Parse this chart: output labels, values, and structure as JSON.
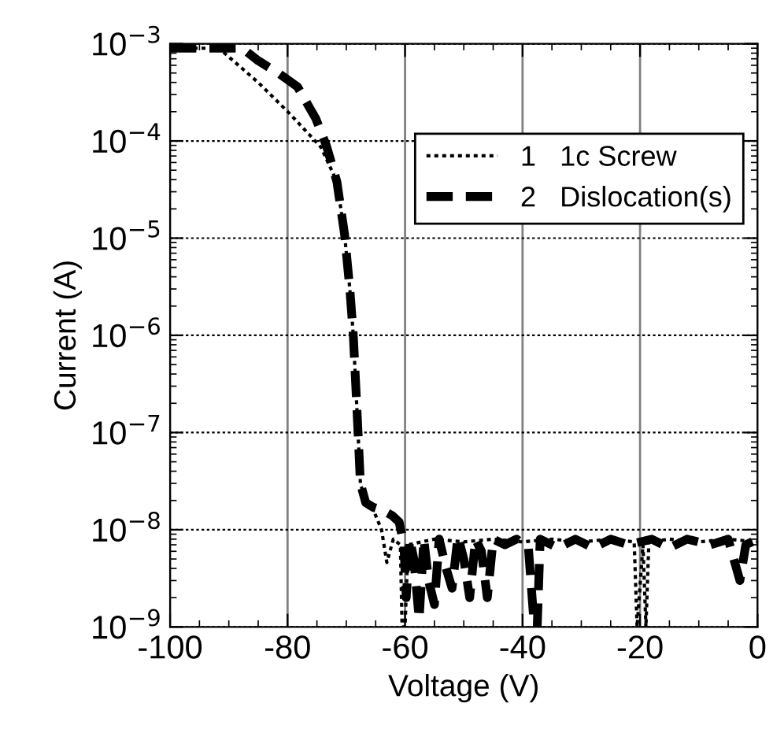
{
  "chart_data": {
    "type": "line",
    "xlabel": "Voltage (V)",
    "ylabel": "Current (A)",
    "log": "y",
    "xlim": [
      -100,
      0
    ],
    "xticks": [
      -100,
      -80,
      -60,
      -40,
      -20,
      0
    ],
    "ylim": [
      1e-09,
      0.001
    ],
    "yticks": [
      {
        "value": 0.001,
        "label": "10$^{−3}$"
      },
      {
        "value": 0.0001,
        "label": "10$^{−4}$"
      },
      {
        "value": 1e-05,
        "label": "10$^{−5}$"
      },
      {
        "value": 1e-06,
        "label": "10$^{−6}$"
      },
      {
        "value": 1e-07,
        "label": "10$^{−7}$"
      },
      {
        "value": 1e-08,
        "label": "10$^{−8}$"
      },
      {
        "value": 1e-09,
        "label": "10$^{−9}$"
      }
    ],
    "grid": true,
    "legend": "top right",
    "marker": "none",
    "series": [
      {
        "name": "1   1c Screw",
        "color": "#000000",
        "line_style": "dotted",
        "x": [
          -100,
          -91.7,
          -85,
          -79.6,
          -74.3,
          -71.6,
          -70.3,
          -69.4,
          -68.8,
          -68,
          -67.6,
          -66.7,
          -65.4,
          -64,
          -63.1,
          -62,
          -60.8,
          -60.5,
          -60,
          -59.5,
          -55,
          -50,
          -45,
          -40,
          -35,
          -30,
          -25,
          -21,
          -20.5,
          -19.5,
          -19,
          -18.5,
          -15,
          -10,
          -5,
          0
        ],
        "values": [
          0.0009,
          0.0009,
          0.0004,
          0.00019,
          8.6e-05,
          3.8e-05,
          1.1e-05,
          3e-06,
          9.8e-07,
          1e-07,
          3e-08,
          1.9e-08,
          1.6e-08,
          1e-08,
          4.6e-09,
          8e-09,
          7e-09,
          1e-09,
          1e-09,
          7e-09,
          8e-09,
          7.5e-09,
          8e-09,
          7.5e-09,
          8e-09,
          7.5e-09,
          8e-09,
          7.5e-09,
          1e-09,
          7e-09,
          1e-09,
          7.5e-09,
          8e-09,
          7.5e-09,
          8e-09,
          7.5e-09
        ]
      },
      {
        "name": "2   Dislocation(s)",
        "color": "#000000",
        "line_style": "dashed",
        "x": [
          -100,
          -87.7,
          -85,
          -81.4,
          -78.3,
          -75.2,
          -73.4,
          -71.6,
          -70.3,
          -69.4,
          -68.8,
          -68,
          -67.6,
          -66.7,
          -65.4,
          -64,
          -62.2,
          -61,
          -60.2,
          -59.8,
          -59.2,
          -58.5,
          -57.6,
          -56.8,
          -56,
          -55,
          -54.2,
          -53,
          -52,
          -51,
          -50,
          -49,
          -48,
          -47,
          -46,
          -45,
          -43,
          -41,
          -39,
          -38,
          -37.5,
          -37,
          -34,
          -31,
          -28,
          -25,
          -22,
          -18,
          -15,
          -12,
          -8,
          -5,
          -3,
          -2,
          0
        ],
        "values": [
          0.0009,
          0.0009,
          0.00067,
          0.00049,
          0.00036,
          0.00017,
          9e-05,
          3.8e-05,
          1.1e-05,
          3e-06,
          9.8e-07,
          1e-07,
          3e-08,
          1.9e-08,
          1.7e-08,
          1.6e-08,
          1.4e-08,
          1.2e-08,
          7e-09,
          2e-09,
          8e-09,
          5e-09,
          1.2e-09,
          8e-09,
          3e-09,
          1.7e-09,
          8e-09,
          4e-09,
          2.5e-09,
          8.5e-09,
          5e-09,
          2e-09,
          8e-09,
          6e-09,
          2e-09,
          8e-09,
          7e-09,
          8e-09,
          6.5e-09,
          1e-09,
          1e-09,
          8e-09,
          6.5e-09,
          8e-09,
          6.5e-09,
          8e-09,
          7e-09,
          8e-09,
          6.5e-09,
          8e-09,
          7e-09,
          8e-09,
          3e-09,
          7e-09,
          8e-09
        ]
      }
    ]
  }
}
